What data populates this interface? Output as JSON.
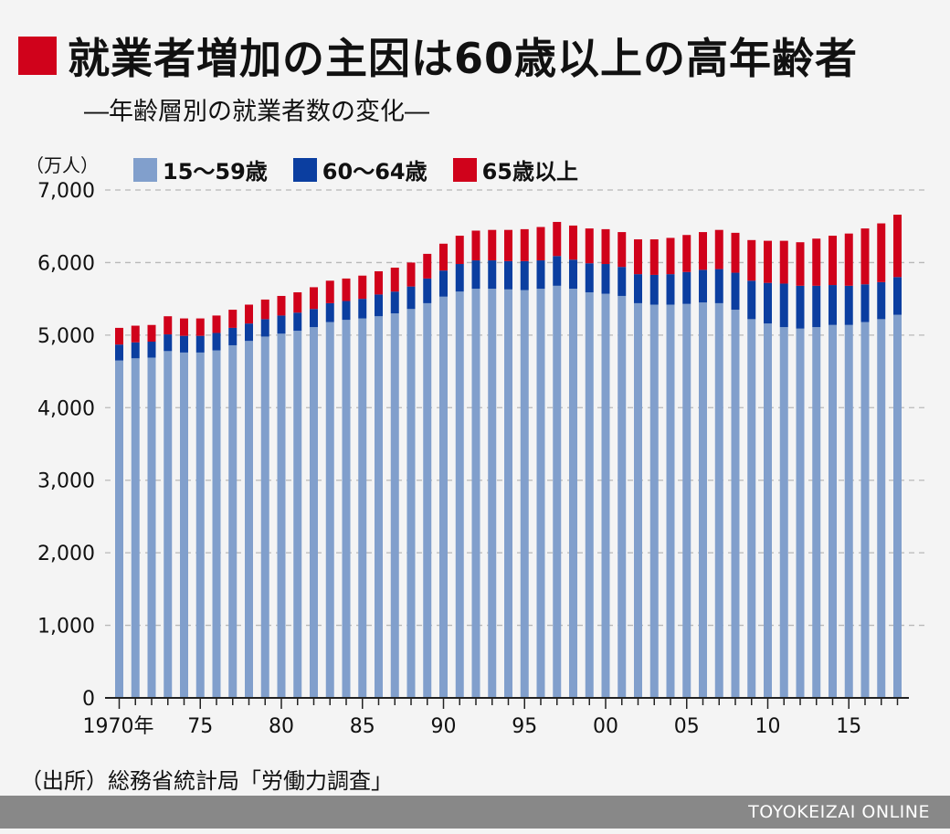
{
  "header": {
    "title": "就業者増加の主因は60歳以上の高年齢者",
    "subtitle": "―年齢層別の就業者数の変化―",
    "title_accent": "#d0021b"
  },
  "source": "（出所）総務省統計局「労働力調査」",
  "footer": {
    "brand": "TOYOKEIZAI ONLINE",
    "background": "#888888"
  },
  "chart_data": {
    "type": "bar",
    "stacked": true,
    "unit_label": "（万人）",
    "ylim": [
      0,
      7000
    ],
    "y_ticks": [
      0,
      1000,
      2000,
      3000,
      4000,
      5000,
      6000,
      7000
    ],
    "y_tick_labels": [
      "0",
      "1,000",
      "2,000",
      "3,000",
      "4,000",
      "5,000",
      "6,000",
      "7,000"
    ],
    "grid": "horizontal dashed",
    "legend_position": "top",
    "x_tick_labels": [
      {
        "index": 0,
        "label": "1970年"
      },
      {
        "index": 5,
        "label": "75"
      },
      {
        "index": 10,
        "label": "80"
      },
      {
        "index": 15,
        "label": "85"
      },
      {
        "index": 20,
        "label": "90"
      },
      {
        "index": 25,
        "label": "95"
      },
      {
        "index": 30,
        "label": "00"
      },
      {
        "index": 35,
        "label": "05"
      },
      {
        "index": 40,
        "label": "10"
      },
      {
        "index": 45,
        "label": "15"
      }
    ],
    "categories": [
      1970,
      1971,
      1972,
      1973,
      1974,
      1975,
      1976,
      1977,
      1978,
      1979,
      1980,
      1981,
      1982,
      1983,
      1984,
      1985,
      1986,
      1987,
      1988,
      1989,
      1990,
      1991,
      1992,
      1993,
      1994,
      1995,
      1996,
      1997,
      1998,
      1999,
      2000,
      2001,
      2002,
      2003,
      2004,
      2005,
      2006,
      2007,
      2008,
      2009,
      2010,
      2011,
      2012,
      2013,
      2014,
      2015,
      2016,
      2017,
      2018
    ],
    "series": [
      {
        "name": "15～59歳",
        "color": "#819fcc",
        "values": [
          4650,
          4680,
          4690,
          4780,
          4760,
          4760,
          4790,
          4860,
          4920,
          4980,
          5020,
          5060,
          5110,
          5180,
          5210,
          5230,
          5260,
          5300,
          5360,
          5440,
          5530,
          5600,
          5640,
          5640,
          5630,
          5620,
          5640,
          5680,
          5640,
          5590,
          5570,
          5540,
          5440,
          5420,
          5420,
          5430,
          5450,
          5440,
          5350,
          5220,
          5160,
          5110,
          5090,
          5110,
          5140,
          5140,
          5180,
          5220,
          5280
        ]
      },
      {
        "name": "60～64歳",
        "color": "#0b3ea0",
        "values": [
          220,
          220,
          220,
          230,
          230,
          230,
          240,
          240,
          240,
          240,
          250,
          250,
          250,
          260,
          260,
          270,
          300,
          300,
          310,
          340,
          360,
          380,
          390,
          390,
          390,
          400,
          390,
          410,
          400,
          400,
          410,
          400,
          400,
          410,
          420,
          440,
          450,
          470,
          510,
          530,
          560,
          600,
          590,
          570,
          550,
          540,
          520,
          510,
          520
        ]
      },
      {
        "name": "65歳以上",
        "color": "#d0021b",
        "values": [
          230,
          230,
          230,
          250,
          240,
          240,
          240,
          250,
          260,
          270,
          270,
          280,
          300,
          310,
          310,
          320,
          320,
          330,
          330,
          340,
          370,
          390,
          410,
          420,
          430,
          440,
          460,
          470,
          470,
          480,
          480,
          480,
          480,
          490,
          500,
          510,
          520,
          540,
          550,
          560,
          580,
          590,
          600,
          650,
          680,
          720,
          770,
          810,
          860
        ]
      }
    ]
  }
}
